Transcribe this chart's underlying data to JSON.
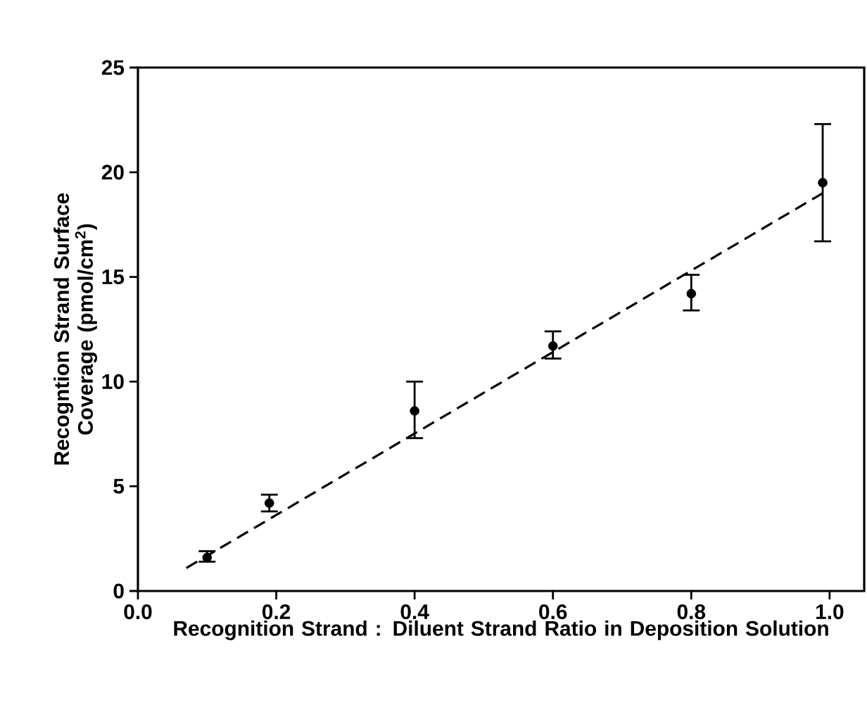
{
  "chart_data": {
    "type": "scatter",
    "xlabel": "Recognition Strand : Diluent Strand Ratio in Deposition Solution",
    "ylabel": "Recogntion Strand Surface Coverage (pmol/cm$^{2}$)",
    "xlim": [
      0,
      1.05
    ],
    "ylim": [
      0,
      25
    ],
    "xticks": [
      {
        "value": 0,
        "label": "0.0"
      },
      {
        "value": 0.2,
        "label": "0.2"
      },
      {
        "value": 0.4,
        "label": "0.4"
      },
      {
        "value": 0.6,
        "label": "0.6"
      },
      {
        "value": 0.8,
        "label": "0.8"
      },
      {
        "value": 1.0,
        "label": "1.0"
      }
    ],
    "yticks": [
      0,
      5,
      10,
      15,
      20,
      25
    ],
    "grid": false,
    "series": [
      {
        "color": "#000000",
        "marker": "circle",
        "x": [
          0.1,
          0.19,
          0.4,
          0.6,
          0.8,
          0.99
        ],
        "values": [
          1.6,
          4.2,
          8.6,
          11.7,
          14.2,
          19.5
        ],
        "errors": [
          [
            1.4,
            1.9
          ],
          [
            3.8,
            4.6
          ],
          [
            7.3,
            10.0
          ],
          [
            11.1,
            12.4
          ],
          [
            13.4,
            15.1
          ],
          [
            16.7,
            22.3
          ]
        ]
      },
      {
        "type": "line",
        "color": "#000000",
        "marker": "none",
        "line_style": "dashed",
        "x": [
          0.07,
          0.99
        ],
        "values": [
          1.1,
          19.0
        ]
      }
    ]
  }
}
